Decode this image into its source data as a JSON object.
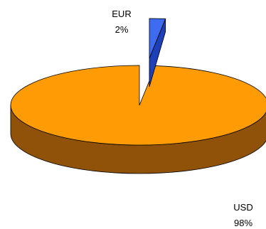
{
  "chart_data": {
    "type": "pie",
    "style": "3d-exploded",
    "categories": [
      "EUR",
      "USD"
    ],
    "values": [
      2,
      98
    ],
    "value_labels": [
      "2%",
      "98%"
    ],
    "colors": {
      "EUR": "#3d6bf2",
      "USD": "#ff9b05",
      "USD_side": "#8f5208",
      "outline": "#000000"
    },
    "legend": "none"
  }
}
